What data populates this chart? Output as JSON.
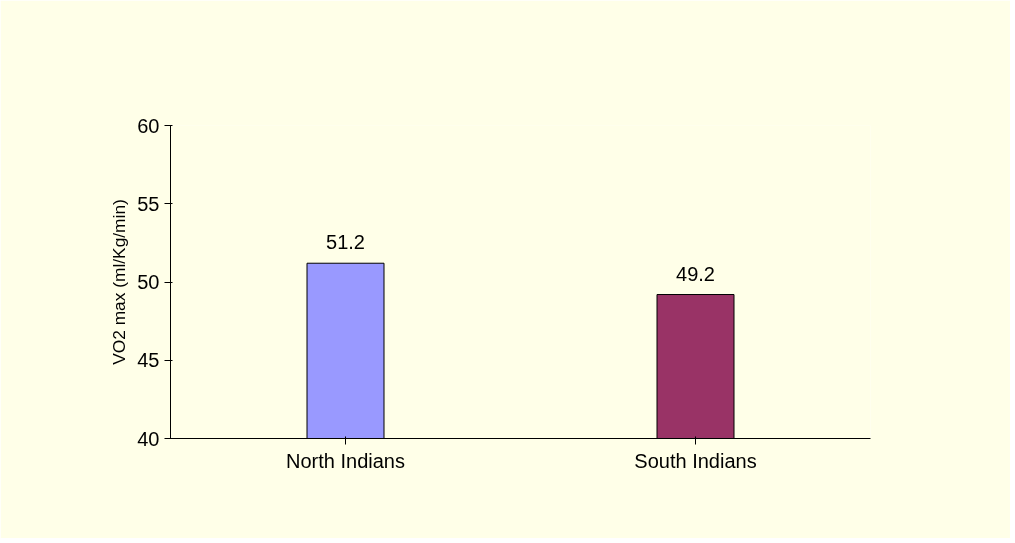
{
  "chart_data": {
    "type": "bar",
    "ylabel": "VO2 max (ml/Kg/min)",
    "categories": [
      "North Indians",
      "South Indians"
    ],
    "series": [
      {
        "values": [
          51.2,
          49.2
        ],
        "colors": [
          "#9999ff",
          "#993366"
        ]
      }
    ],
    "ylim": [
      40,
      60
    ],
    "yticks": [
      40,
      45,
      50,
      55,
      60
    ],
    "data_labels": true,
    "grid": false
  }
}
